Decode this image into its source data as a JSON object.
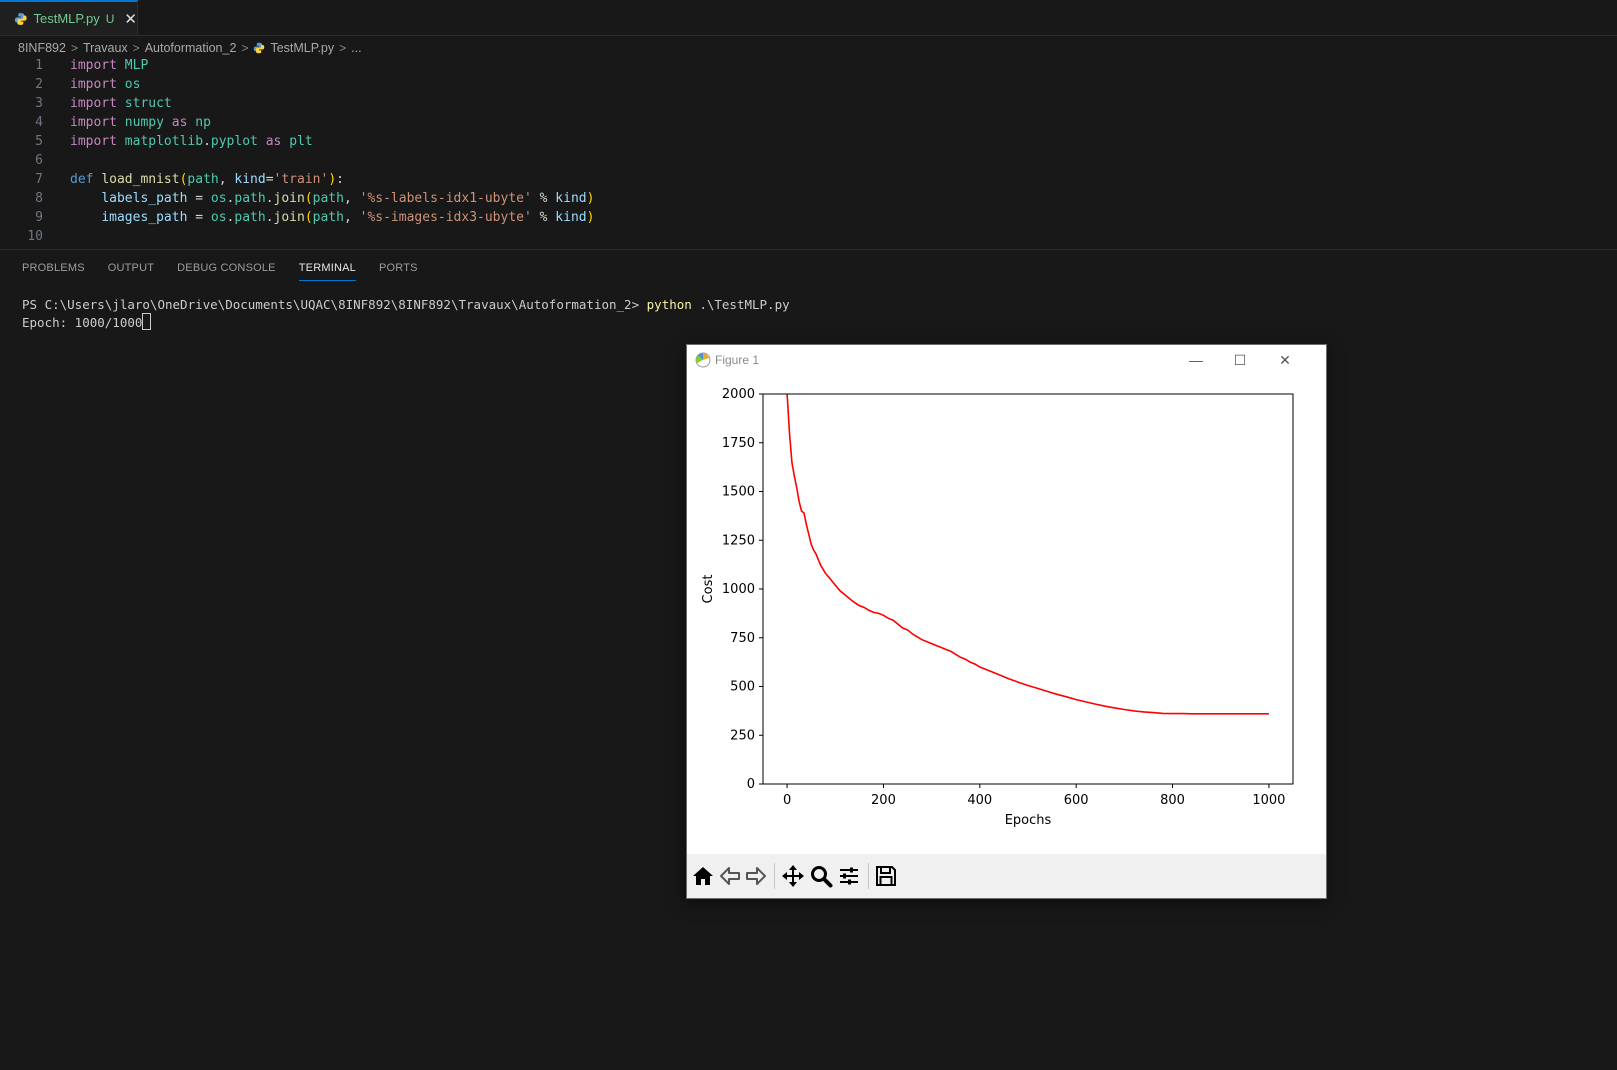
{
  "editor": {
    "tab": {
      "filename": "TestMLP.py",
      "status": "U"
    },
    "breadcrumb": [
      "8INF892",
      "Travaux",
      "Autoformation_2",
      "TestMLP.py",
      "..."
    ],
    "code_lines": [
      {
        "n": "1",
        "t": "import MLP"
      },
      {
        "n": "2",
        "t": "import os"
      },
      {
        "n": "3",
        "t": "import struct"
      },
      {
        "n": "4",
        "t": "import numpy as np"
      },
      {
        "n": "5",
        "t": "import matplotlib.pyplot as plt"
      },
      {
        "n": "6",
        "t": ""
      },
      {
        "n": "7",
        "t": "def load_mnist(path, kind='train'):"
      },
      {
        "n": "8",
        "t": "    labels_path = os.path.join(path, '%s-labels-idx1-ubyte' % kind)"
      },
      {
        "n": "9",
        "t": "    images_path = os.path.join(path, '%s-images-idx3-ubyte' % kind)"
      },
      {
        "n": "10",
        "t": ""
      }
    ]
  },
  "panel": {
    "tabs": [
      "PROBLEMS",
      "OUTPUT",
      "DEBUG CONSOLE",
      "TERMINAL",
      "PORTS"
    ],
    "active_tab": "TERMINAL",
    "terminal": {
      "prompt": "PS C:\\Users\\jlaro\\OneDrive\\Documents\\UQAC\\8INF892\\8INF892\\Travaux\\Autoformation_2> ",
      "command": "python",
      "args": " .\\TestMLP.py",
      "output": "Epoch: 1000/1000"
    }
  },
  "figure_window": {
    "title": "Figure 1",
    "controls": {
      "minimize": "—",
      "maximize": "☐",
      "close": "✕"
    },
    "toolbar": [
      "home-icon",
      "back-icon",
      "forward-icon",
      "pan-icon",
      "zoom-icon",
      "configure-icon",
      "save-icon"
    ]
  },
  "colors": {
    "line": "#ff0000",
    "accent": "#0078d4",
    "editor_bg": "#181818"
  },
  "chart_data": {
    "type": "line",
    "title": "",
    "xlabel": "Epochs",
    "ylabel": "Cost",
    "xlim": [
      -50,
      1050
    ],
    "ylim": [
      0,
      2000
    ],
    "xticks": [
      0,
      200,
      400,
      600,
      800,
      1000
    ],
    "yticks": [
      0,
      250,
      500,
      750,
      1000,
      1250,
      1500,
      1750,
      2000
    ],
    "grid": false,
    "series": [
      {
        "color": "#ff0000",
        "x": [
          0,
          5,
          10,
          15,
          20,
          25,
          30,
          35,
          40,
          45,
          50,
          55,
          60,
          65,
          70,
          80,
          90,
          100,
          110,
          120,
          130,
          140,
          150,
          160,
          170,
          180,
          190,
          200,
          210,
          220,
          230,
          240,
          250,
          260,
          270,
          280,
          290,
          300,
          310,
          320,
          330,
          340,
          350,
          360,
          370,
          380,
          390,
          400,
          410,
          420,
          440,
          460,
          480,
          500,
          520,
          540,
          560,
          580,
          600,
          620,
          640,
          660,
          680,
          700,
          720,
          740,
          760,
          780,
          800,
          820,
          840,
          860,
          880,
          900,
          920,
          940,
          960,
          980,
          1000
        ],
        "y": [
          2000,
          1800,
          1650,
          1580,
          1520,
          1450,
          1400,
          1390,
          1330,
          1280,
          1230,
          1200,
          1180,
          1150,
          1120,
          1080,
          1050,
          1020,
          990,
          970,
          950,
          930,
          915,
          905,
          890,
          880,
          875,
          865,
          850,
          840,
          820,
          800,
          790,
          770,
          755,
          740,
          730,
          720,
          710,
          700,
          690,
          680,
          665,
          650,
          640,
          625,
          615,
          600,
          590,
          580,
          560,
          540,
          522,
          505,
          490,
          475,
          460,
          447,
          433,
          421,
          410,
          399,
          390,
          382,
          375,
          370,
          366,
          362,
          361,
          361,
          360,
          360,
          360,
          360,
          360,
          360,
          360,
          360,
          360
        ]
      }
    ]
  }
}
